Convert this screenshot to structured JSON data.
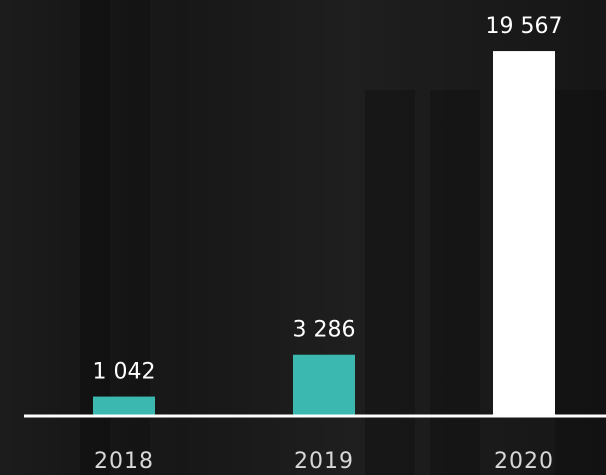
{
  "chart_data": {
    "type": "bar",
    "categories": [
      "2018",
      "2019",
      "2020"
    ],
    "values": [
      1042,
      3286,
      19567
    ],
    "value_labels": [
      "1 042",
      "3 286",
      "19 567"
    ],
    "colors": [
      "#3bb9b1",
      "#3bb9b1",
      "#ffffff"
    ],
    "ylim": [
      0,
      20000
    ]
  }
}
